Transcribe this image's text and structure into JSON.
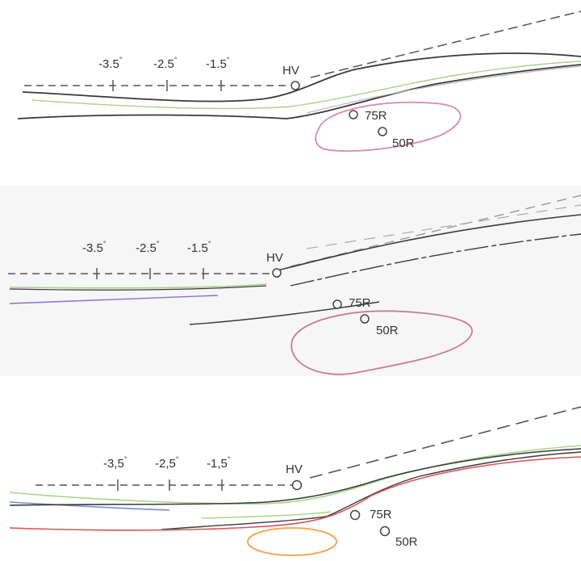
{
  "panels": [
    {
      "angles": [
        "-3.5",
        "-2.5",
        "-1.5"
      ],
      "degree_symbol": "°",
      "hv_label": "HV",
      "point75_label": "75R",
      "point50_label": "50R"
    },
    {
      "angles": [
        "-3.5",
        "-2.5",
        "-1.5"
      ],
      "degree_symbol": "°",
      "hv_label": "HV",
      "point75_label": "75R",
      "point50_label": "50R"
    },
    {
      "angles": [
        "-3,5",
        "-2,5",
        "-1,5"
      ],
      "degree_symbol": "°",
      "hv_label": "HV",
      "point75_label": "75R",
      "point50_label": "50R"
    }
  ],
  "colors": {
    "dashed": "#555555",
    "cutoff_dark": "#3a3a3a",
    "green": "#a8d48a",
    "pink": "#d98ab0",
    "red": "#e05050",
    "blue": "#6f8fd6",
    "orange": "#f2a24a",
    "purple": "#8a6fd6"
  }
}
